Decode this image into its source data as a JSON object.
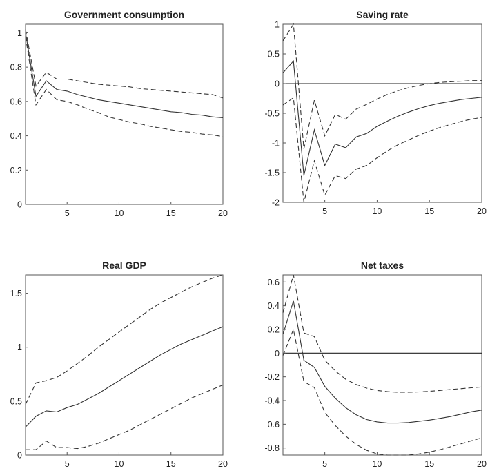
{
  "chart_data": [
    {
      "type": "line",
      "title": "Government consumption",
      "xlabel": "",
      "ylabel": "",
      "xlim": [
        1,
        20
      ],
      "ylim": [
        0,
        1.05
      ],
      "xticks": [
        5,
        10,
        15,
        20
      ],
      "yticks": [
        0,
        0.2,
        0.4,
        0.6,
        0.8,
        1
      ],
      "ytick_labels": [
        "0",
        "0.2",
        "0.4",
        "0.6",
        "0.8",
        "1"
      ],
      "zero_line": false,
      "x": [
        1,
        2,
        3,
        4,
        5,
        6,
        7,
        8,
        9,
        10,
        11,
        12,
        13,
        14,
        15,
        16,
        17,
        18,
        19,
        20
      ],
      "series": [
        {
          "style": "solid",
          "values": [
            1.0,
            0.63,
            0.72,
            0.67,
            0.66,
            0.64,
            0.625,
            0.61,
            0.6,
            0.59,
            0.58,
            0.57,
            0.56,
            0.55,
            0.54,
            0.535,
            0.525,
            0.52,
            0.51,
            0.505
          ]
        },
        {
          "style": "dashed",
          "values": [
            1.02,
            0.69,
            0.77,
            0.73,
            0.73,
            0.72,
            0.71,
            0.7,
            0.695,
            0.69,
            0.685,
            0.675,
            0.67,
            0.665,
            0.66,
            0.655,
            0.65,
            0.645,
            0.64,
            0.62
          ]
        },
        {
          "style": "dashed",
          "values": [
            0.98,
            0.58,
            0.67,
            0.61,
            0.6,
            0.58,
            0.555,
            0.535,
            0.51,
            0.495,
            0.48,
            0.47,
            0.455,
            0.445,
            0.435,
            0.425,
            0.42,
            0.41,
            0.405,
            0.395
          ]
        }
      ]
    },
    {
      "type": "line",
      "title": "Saving rate",
      "xlabel": "",
      "ylabel": "",
      "xlim": [
        1,
        20
      ],
      "ylim": [
        -2,
        1
      ],
      "xticks": [
        5,
        10,
        15,
        20
      ],
      "yticks": [
        -2,
        -1.5,
        -1,
        -0.5,
        0,
        0.5,
        1
      ],
      "ytick_labels": [
        "-2",
        "-1.5",
        "-1",
        "-0.5",
        "0",
        "0.5",
        "1"
      ],
      "zero_line": true,
      "x": [
        1,
        2,
        3,
        4,
        5,
        6,
        7,
        8,
        9,
        10,
        11,
        12,
        13,
        14,
        15,
        16,
        17,
        18,
        19,
        20
      ],
      "series": [
        {
          "style": "solid",
          "values": [
            0.18,
            0.38,
            -1.55,
            -0.78,
            -1.38,
            -1.02,
            -1.08,
            -0.9,
            -0.84,
            -0.72,
            -0.63,
            -0.55,
            -0.48,
            -0.42,
            -0.37,
            -0.33,
            -0.3,
            -0.27,
            -0.25,
            -0.23
          ]
        },
        {
          "style": "dashed",
          "values": [
            0.72,
            1.0,
            -1.1,
            -0.28,
            -0.88,
            -0.52,
            -0.6,
            -0.43,
            -0.35,
            -0.26,
            -0.18,
            -0.12,
            -0.07,
            -0.03,
            0.0,
            0.02,
            0.03,
            0.04,
            0.05,
            0.05
          ]
        },
        {
          "style": "dashed",
          "values": [
            -0.36,
            -0.24,
            -2.0,
            -1.3,
            -1.88,
            -1.55,
            -1.6,
            -1.44,
            -1.38,
            -1.25,
            -1.13,
            -1.03,
            -0.95,
            -0.87,
            -0.8,
            -0.74,
            -0.69,
            -0.64,
            -0.6,
            -0.57
          ]
        }
      ]
    },
    {
      "type": "line",
      "title": "Real GDP",
      "xlabel": "",
      "ylabel": "",
      "xlim": [
        1,
        20
      ],
      "ylim": [
        0,
        1.67
      ],
      "xticks": [
        5,
        10,
        15,
        20
      ],
      "yticks": [
        0,
        0.5,
        1,
        1.5
      ],
      "ytick_labels": [
        "0",
        "0.5",
        "1",
        "1.5"
      ],
      "zero_line": false,
      "x": [
        1,
        2,
        3,
        4,
        5,
        6,
        7,
        8,
        9,
        10,
        11,
        12,
        13,
        14,
        15,
        16,
        17,
        18,
        19,
        20
      ],
      "series": [
        {
          "style": "solid",
          "values": [
            0.26,
            0.36,
            0.41,
            0.4,
            0.44,
            0.47,
            0.52,
            0.57,
            0.63,
            0.69,
            0.75,
            0.81,
            0.87,
            0.93,
            0.98,
            1.03,
            1.07,
            1.11,
            1.15,
            1.19
          ]
        },
        {
          "style": "dashed",
          "values": [
            0.47,
            0.67,
            0.69,
            0.72,
            0.78,
            0.85,
            0.92,
            1.0,
            1.07,
            1.14,
            1.21,
            1.28,
            1.35,
            1.41,
            1.46,
            1.51,
            1.56,
            1.6,
            1.64,
            1.67
          ]
        },
        {
          "style": "dashed",
          "values": [
            0.05,
            0.05,
            0.13,
            0.07,
            0.07,
            0.06,
            0.08,
            0.11,
            0.15,
            0.19,
            0.23,
            0.28,
            0.33,
            0.38,
            0.43,
            0.48,
            0.53,
            0.57,
            0.61,
            0.65
          ]
        }
      ]
    },
    {
      "type": "line",
      "title": "Net taxes",
      "xlabel": "",
      "ylabel": "",
      "xlim": [
        1,
        20
      ],
      "ylim": [
        -0.86,
        0.66
      ],
      "xticks": [
        5,
        10,
        15,
        20
      ],
      "yticks": [
        -0.8,
        -0.6,
        -0.4,
        -0.2,
        0,
        0.2,
        0.4,
        0.6
      ],
      "ytick_labels": [
        "-0.8",
        "-0.6",
        "-0.4",
        "-0.2",
        "0",
        "0.2",
        "0.4",
        "0.6"
      ],
      "zero_line": true,
      "x": [
        1,
        2,
        3,
        4,
        5,
        6,
        7,
        8,
        9,
        10,
        11,
        12,
        13,
        14,
        15,
        16,
        17,
        18,
        19,
        20
      ],
      "series": [
        {
          "style": "solid",
          "values": [
            0.16,
            0.44,
            -0.06,
            -0.12,
            -0.28,
            -0.38,
            -0.46,
            -0.52,
            -0.56,
            -0.58,
            -0.59,
            -0.59,
            -0.585,
            -0.575,
            -0.565,
            -0.55,
            -0.535,
            -0.515,
            -0.495,
            -0.48
          ]
        },
        {
          "style": "dashed",
          "values": [
            0.34,
            0.66,
            0.17,
            0.14,
            -0.06,
            -0.15,
            -0.22,
            -0.265,
            -0.295,
            -0.315,
            -0.325,
            -0.33,
            -0.33,
            -0.327,
            -0.322,
            -0.315,
            -0.307,
            -0.3,
            -0.292,
            -0.285
          ]
        },
        {
          "style": "dashed",
          "values": [
            -0.02,
            0.2,
            -0.24,
            -0.29,
            -0.5,
            -0.61,
            -0.7,
            -0.77,
            -0.82,
            -0.85,
            -0.86,
            -0.86,
            -0.86,
            -0.85,
            -0.835,
            -0.815,
            -0.79,
            -0.765,
            -0.74,
            -0.715
          ]
        }
      ]
    }
  ]
}
